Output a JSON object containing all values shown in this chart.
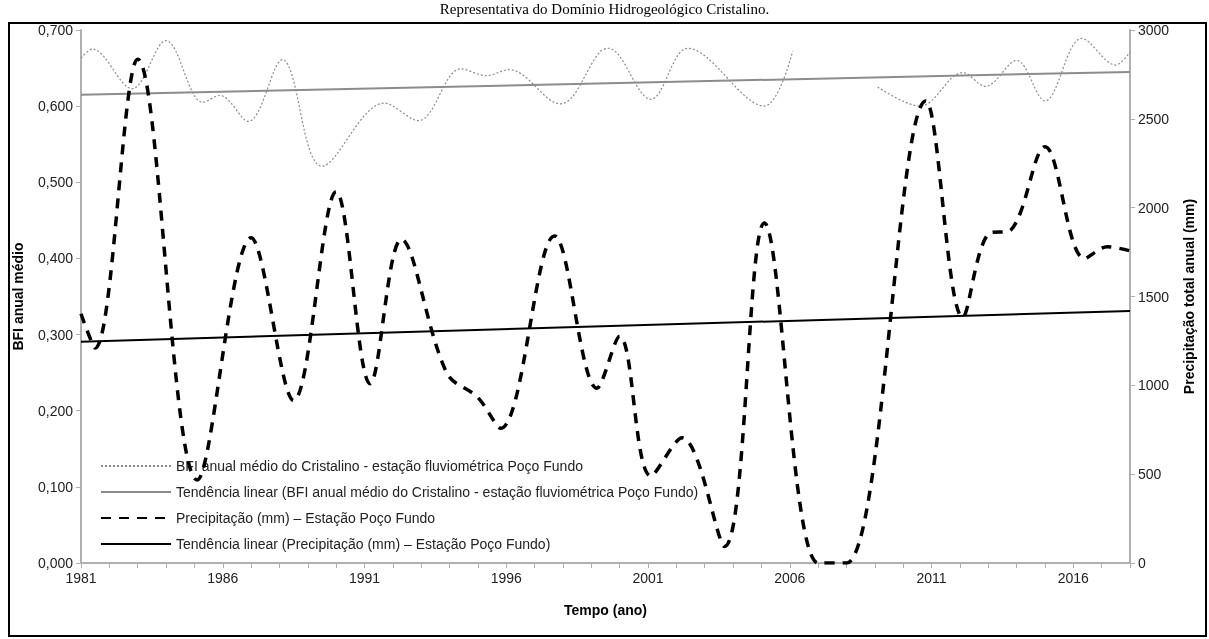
{
  "chart_data": {
    "type": "line",
    "title": "Representativa do Domínio Hidrogeológico Cristalino.",
    "xlabel": "Tempo (ano)",
    "ylabel": "BFI anual médio",
    "y2label": "Precipitação total anual (mm)",
    "xlim": [
      1981,
      2018
    ],
    "xticks": [
      1981,
      {
        "value": 1982,
        "label": null
      },
      {
        "value": 1983,
        "label": null
      },
      {
        "value": 1984,
        "label": null
      },
      {
        "value": 1985,
        "label": null
      },
      1986,
      {
        "value": 1987,
        "label": null
      },
      {
        "value": 1988,
        "label": null
      },
      {
        "value": 1989,
        "label": null
      },
      {
        "value": 1990,
        "label": null
      },
      1991,
      {
        "value": 1992,
        "label": null
      },
      {
        "value": 1993,
        "label": null
      },
      {
        "value": 1994,
        "label": null
      },
      {
        "value": 1995,
        "label": null
      },
      1996,
      {
        "value": 1997,
        "label": null
      },
      {
        "value": 1998,
        "label": null
      },
      {
        "value": 1999,
        "label": null
      },
      {
        "value": 2000,
        "label": null
      },
      2001,
      {
        "value": 2002,
        "label": null
      },
      {
        "value": 2003,
        "label": null
      },
      {
        "value": 2004,
        "label": null
      },
      {
        "value": 2005,
        "label": null
      },
      2006,
      {
        "value": 2007,
        "label": null
      },
      {
        "value": 2008,
        "label": null
      },
      {
        "value": 2009,
        "label": null
      },
      {
        "value": 2010,
        "label": null
      },
      2011,
      {
        "value": 2012,
        "label": null
      },
      {
        "value": 2013,
        "label": null
      },
      {
        "value": 2014,
        "label": null
      },
      {
        "value": 2015,
        "label": null
      },
      2016,
      {
        "value": 2017,
        "label": null
      },
      {
        "value": 2018,
        "label": null
      }
    ],
    "ylim": [
      0,
      0.7
    ],
    "yticks": [
      {
        "value": 0,
        "label": "0,000"
      },
      {
        "value": 0.1,
        "label": "0,100"
      },
      {
        "value": 0.2,
        "label": "0,200"
      },
      {
        "value": 0.3,
        "label": "0,300"
      },
      {
        "value": 0.4,
        "label": "0,400"
      },
      {
        "value": 0.5,
        "label": "0,500"
      },
      {
        "value": 0.6,
        "label": "0,600"
      },
      {
        "value": 0.7,
        "label": "0,700"
      }
    ],
    "y2lim": [
      0,
      3000
    ],
    "y2ticks": [
      0,
      500,
      1000,
      1500,
      2000,
      2500,
      3000
    ],
    "grid": false,
    "legend": "bottom left",
    "marker": "none",
    "series": [
      {
        "name": "BFI anual médio do Cristalino - estação fluviométrica Poço Fundo",
        "color": "#8c8c8c",
        "line_style": "dotted",
        "x": [
          1981.0,
          1981.4,
          1982.8,
          1984.0,
          1985.3,
          1985.9,
          1986.9,
          1988.1,
          1989.5,
          1991.7,
          1992.9,
          1994.4,
          1995.3,
          1996.1,
          1997.9,
          1999.3,
          1999.6,
          2001.1,
          2002.4,
          2005.1,
          2006.1,
          2007.5,
          2009.1,
          2010.6,
          2012.1,
          2012.9,
          2014.0,
          2015.0,
          2016.3,
          2017.5,
          2018.0
        ],
        "values": [
          0.663,
          0.675,
          0.623,
          0.686,
          0.605,
          0.614,
          0.58,
          0.661,
          0.521,
          0.604,
          0.581,
          0.649,
          0.64,
          0.648,
          0.603,
          0.671,
          0.676,
          0.609,
          0.676,
          0.6,
          0.672,
          null,
          0.625,
          0.6,
          0.644,
          0.626,
          0.66,
          0.607,
          0.689,
          0.654,
          0.671
        ]
      },
      {
        "name": "Tendência linear (BFI anual médio do Cristalino - estação fluviométrica Poço Fundo)",
        "color": "#8c8c8c",
        "line_style": "solid",
        "x": [
          1981,
          2018
        ],
        "values": [
          0.615,
          0.645
        ]
      },
      {
        "name": "Precipitação (mm) – Estação Poço Fundo",
        "color": "#000000",
        "line_style": "dashed",
        "axis": "y2",
        "x": [
          1981.0,
          1981.5,
          1983.0,
          1985.1,
          1987.0,
          1988.5,
          1990.0,
          1991.2,
          1992.3,
          1993.9,
          1995.0,
          1995.8,
          1997.7,
          1999.2,
          2000.0,
          2001.1,
          2002.2,
          2003.7,
          2005.1,
          2007.0,
          2008.0,
          2010.8,
          2012.1,
          2013.0,
          2013.8,
          2015.0,
          2016.4,
          2017.2,
          2018.0
        ],
        "values": [
          1403,
          1210,
          2835,
          467,
          1830,
          914,
          2090,
          1009,
          1821,
          1070,
          931,
          758,
          1841,
          984,
          1277,
          490,
          705,
          93,
          1913,
          0,
          0,
          2600,
          1383,
          1852,
          1875,
          2343,
          1713,
          1780,
          1757
        ]
      },
      {
        "name": "Tendência linear (Precipitação (mm) – Estação Poço Fundo)",
        "color": "#000000",
        "line_style": "solid",
        "axis": "y2",
        "x": [
          1981,
          2018
        ],
        "values": [
          1246,
          1419
        ]
      }
    ]
  }
}
